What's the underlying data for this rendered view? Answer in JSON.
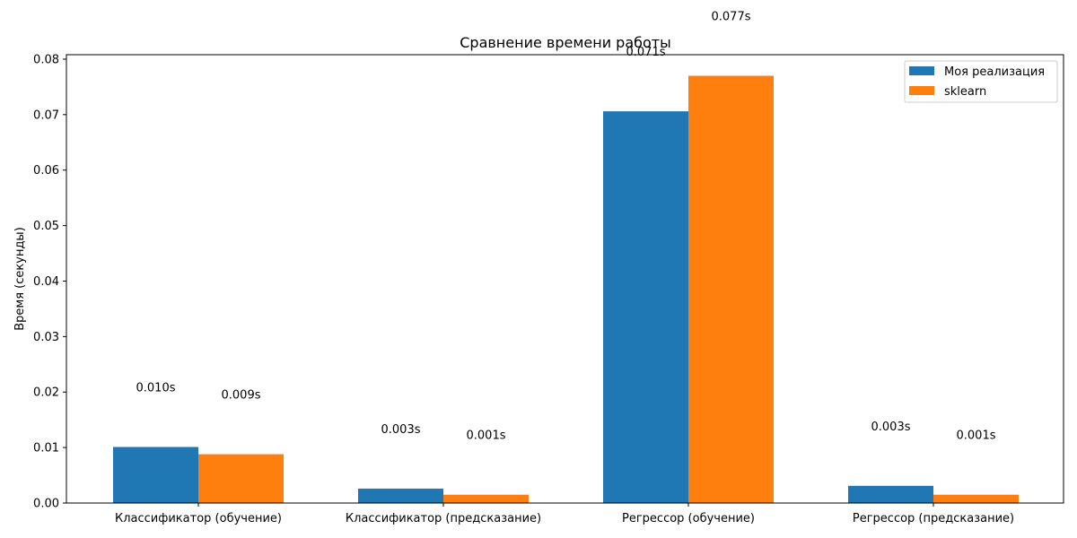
{
  "chart_data": {
    "type": "bar",
    "title": "Сравнение времени работы",
    "xlabel": "",
    "ylabel": "Время (секунды)",
    "ylim": [
      0,
      0.0808
    ],
    "yticks": [
      0.0,
      0.01,
      0.02,
      0.03,
      0.04,
      0.05,
      0.06,
      0.07,
      0.08
    ],
    "ytick_labels": [
      "0.00",
      "0.01",
      "0.02",
      "0.03",
      "0.04",
      "0.05",
      "0.06",
      "0.07",
      "0.08"
    ],
    "categories": [
      "Классификатор (обучение)",
      "Классификатор (предсказание)",
      "Регрессор (обучение)",
      "Регрессор (предсказание)"
    ],
    "series": [
      {
        "name": "Моя реализация",
        "color": "#1f77b4",
        "values": [
          0.0101,
          0.0026,
          0.0706,
          0.0031
        ],
        "labels": [
          "0.010s",
          "0.003s",
          "0.071s",
          "0.003s"
        ]
      },
      {
        "name": "sklearn",
        "color": "#ff7f0e",
        "values": [
          0.0088,
          0.0015,
          0.077,
          0.0015
        ],
        "labels": [
          "0.009s",
          "0.001s",
          "0.077s",
          "0.001s"
        ]
      }
    ],
    "legend": "top-right",
    "grid": false
  }
}
